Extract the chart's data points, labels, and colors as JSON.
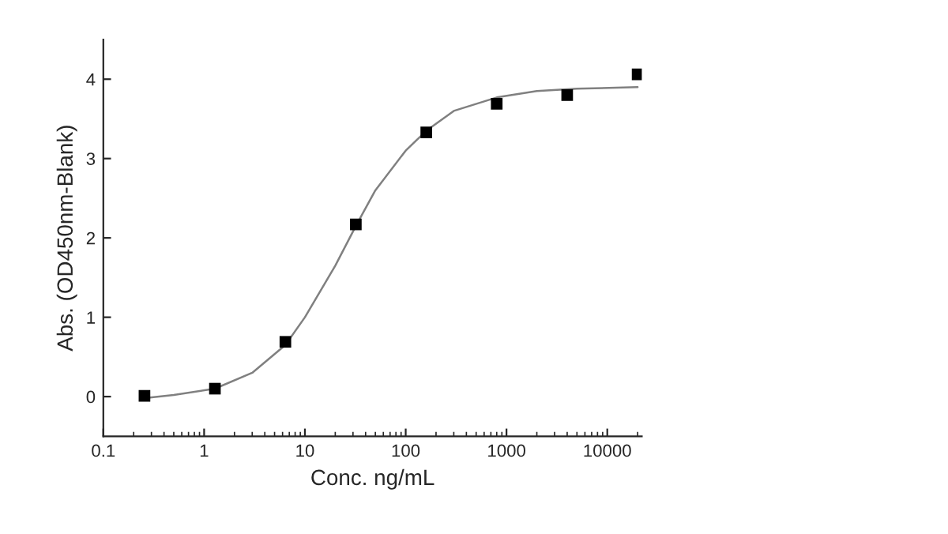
{
  "chart_data": {
    "type": "scatter",
    "xlabel": "Conc. ng/mL",
    "ylabel": "Abs. (OD450nm-Blank)",
    "log": "x",
    "grid": false,
    "xlim": [
      0.1,
      22000
    ],
    "xticks": [
      {
        "value": 0.1,
        "label": "0.1"
      },
      1,
      10,
      100,
      1000,
      10000
    ],
    "ylim": [
      -0.5,
      4.5
    ],
    "yticks": [
      0,
      1,
      2,
      3,
      4
    ],
    "series": [
      {
        "marker": "square",
        "color": "#000000",
        "x": [
          0.256,
          1.28,
          6.4,
          32,
          160,
          800,
          4000,
          20000
        ],
        "values": [
          0.01,
          0.1,
          0.69,
          2.17,
          3.33,
          3.69,
          3.8,
          4.06
        ]
      },
      {
        "type": "line",
        "marker": "none",
        "color": "#808080",
        "x": [
          0.256,
          0.5,
          1.28,
          3,
          6.4,
          10,
          20,
          32,
          50,
          100,
          160,
          300,
          800,
          2000,
          5000,
          20000
        ],
        "values": [
          -0.02,
          0.02,
          0.1,
          0.3,
          0.65,
          1.0,
          1.65,
          2.15,
          2.6,
          3.1,
          3.35,
          3.6,
          3.77,
          3.85,
          3.88,
          3.9
        ]
      }
    ]
  }
}
